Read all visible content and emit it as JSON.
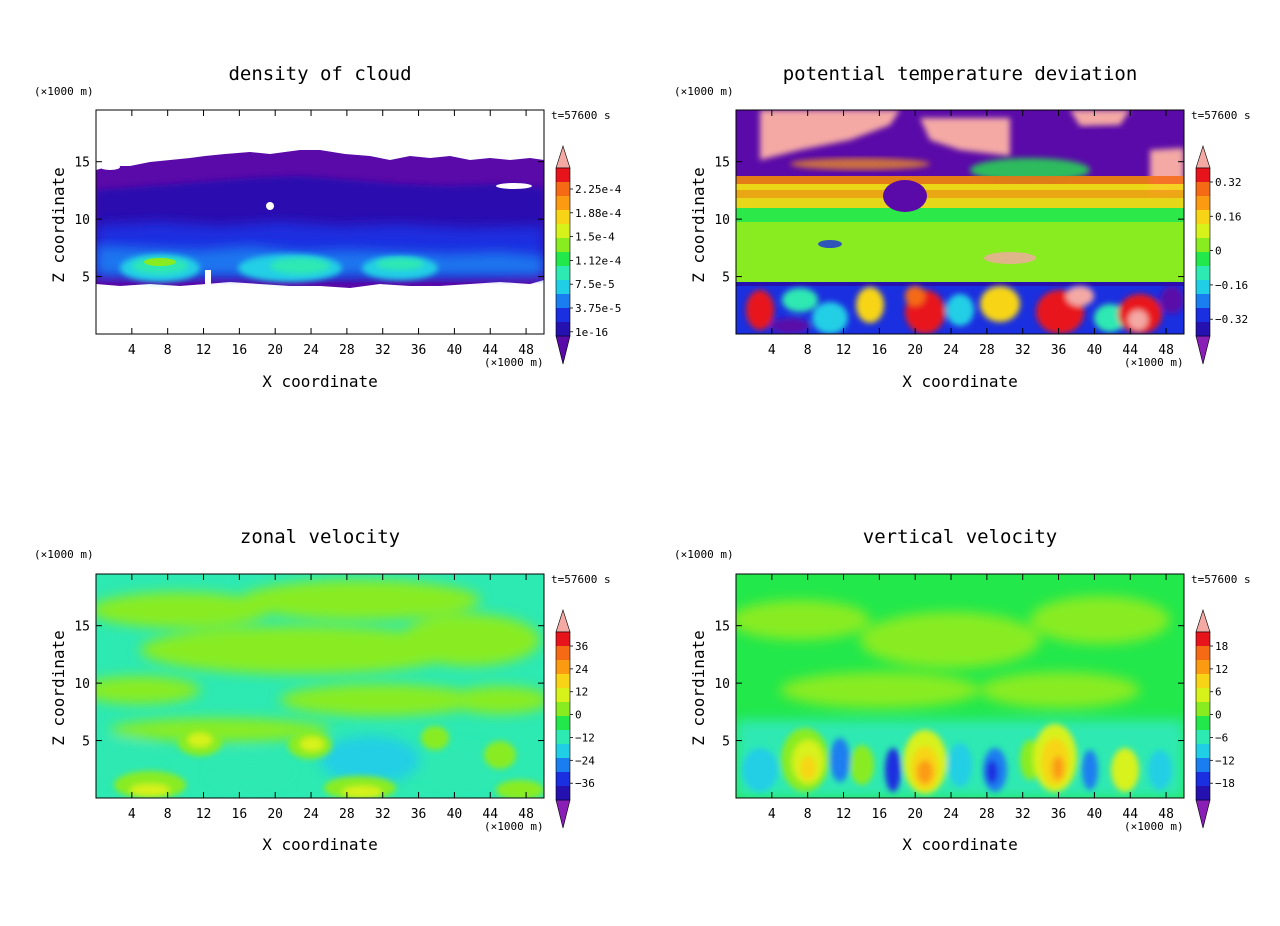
{
  "chart_data": [
    {
      "type": "heatmap",
      "title": "density of cloud",
      "xlabel": "X coordinate",
      "ylabel": "Z coordinate",
      "x_unit": "(×1000 m)",
      "y_unit": "(×1000 m)",
      "time_label": "t=57600 s",
      "xlim": [
        0,
        50
      ],
      "ylim": [
        0,
        19.5
      ],
      "x_ticks": [
        "4",
        "8",
        "12",
        "16",
        "20",
        "24",
        "28",
        "32",
        "36",
        "40",
        "44",
        "48"
      ],
      "x_tick_values": [
        4,
        8,
        12,
        16,
        20,
        24,
        28,
        32,
        36,
        40,
        44,
        48
      ],
      "y_ticks": [
        "5",
        "10",
        "15"
      ],
      "y_tick_values": [
        5,
        10,
        15
      ],
      "colorbar_labels": [
        "2.25e-4",
        "1.88e-4",
        "1.5e-4",
        "1.12e-4",
        "7.5e-5",
        "3.75e-5",
        "1e-16"
      ],
      "colorbar_colors": [
        "#f4a9a4",
        "#e8141c",
        "#f56a14",
        "#fb9b12",
        "#f7d516",
        "#d7f21b",
        "#89ec21",
        "#22e84c",
        "#2de9b2",
        "#20cfe5",
        "#1a7ef0",
        "#1a2fe0",
        "#2511b0",
        "#5a0aa8"
      ],
      "colorbar_extend": "both",
      "field_colors": [
        "#5a0aa8",
        "#2511b0",
        "#1a2fe0",
        "#1a7ef0",
        "#20cfe5",
        "#2de9b2",
        "#89ec21"
      ],
      "field_description": "cloud layer between z≈4.5 and z≈16 with brighter convective cores near x≈8, 20, 34 at z≈5–7"
    },
    {
      "type": "heatmap",
      "title": "potential temperature deviation",
      "xlabel": "X coordinate",
      "ylabel": "Z coordinate",
      "x_unit": "(×1000 m)",
      "y_unit": "(×1000 m)",
      "time_label": "t=57600 s",
      "xlim": [
        0,
        50
      ],
      "ylim": [
        0,
        19.5
      ],
      "x_ticks": [
        "4",
        "8",
        "12",
        "16",
        "20",
        "24",
        "28",
        "32",
        "36",
        "40",
        "44",
        "48"
      ],
      "x_tick_values": [
        4,
        8,
        12,
        16,
        20,
        24,
        28,
        32,
        36,
        40,
        44,
        48
      ],
      "y_ticks": [
        "5",
        "10",
        "15"
      ],
      "y_tick_values": [
        5,
        10,
        15
      ],
      "colorbar_labels": [
        "0.32",
        "0.16",
        "0",
        "−0.16",
        "−0.32"
      ],
      "colorbar_colors": [
        "#e8141c",
        "#f56a14",
        "#fb9b12",
        "#f7d516",
        "#d7f21b",
        "#89ec21",
        "#22e84c",
        "#2de9b2",
        "#20cfe5",
        "#1a7ef0",
        "#1a2fe0",
        "#2511b0"
      ],
      "colorbar_extend": "both",
      "colorbar_top": "#f4a9a4",
      "colorbar_bottom": "#8a1fb8"
    },
    {
      "type": "heatmap",
      "title": "zonal velocity",
      "xlabel": "X coordinate",
      "ylabel": "Z coordinate",
      "x_unit": "(×1000 m)",
      "y_unit": "(×1000 m)",
      "time_label": "t=57600 s",
      "xlim": [
        0,
        50
      ],
      "ylim": [
        0,
        19.5
      ],
      "x_ticks": [
        "4",
        "8",
        "12",
        "16",
        "20",
        "24",
        "28",
        "32",
        "36",
        "40",
        "44",
        "48"
      ],
      "x_tick_values": [
        4,
        8,
        12,
        16,
        20,
        24,
        28,
        32,
        36,
        40,
        44,
        48
      ],
      "y_ticks": [
        "5",
        "10",
        "15"
      ],
      "y_tick_values": [
        5,
        10,
        15
      ],
      "colorbar_labels": [
        "36",
        "24",
        "12",
        "0",
        "−12",
        "−24",
        "−36"
      ],
      "colorbar_colors": [
        "#e8141c",
        "#f56a14",
        "#fb9b12",
        "#f7d516",
        "#d7f21b",
        "#89ec21",
        "#22e84c",
        "#2de9b2",
        "#20cfe5",
        "#1a7ef0",
        "#1a2fe0",
        "#2511b0"
      ],
      "colorbar_extend": "both",
      "colorbar_top": "#f4a9a4",
      "colorbar_bottom": "#8a1fb8"
    },
    {
      "type": "heatmap",
      "title": "vertical velocity",
      "xlabel": "X coordinate",
      "ylabel": "Z coordinate",
      "x_unit": "(×1000 m)",
      "y_unit": "(×1000 m)",
      "time_label": "t=57600 s",
      "xlim": [
        0,
        50
      ],
      "ylim": [
        0,
        19.5
      ],
      "x_ticks": [
        "4",
        "8",
        "12",
        "16",
        "20",
        "24",
        "28",
        "32",
        "36",
        "40",
        "44",
        "48"
      ],
      "x_tick_values": [
        4,
        8,
        12,
        16,
        20,
        24,
        28,
        32,
        36,
        40,
        44,
        48
      ],
      "y_ticks": [
        "5",
        "10",
        "15"
      ],
      "y_tick_values": [
        5,
        10,
        15
      ],
      "colorbar_labels": [
        "18",
        "12",
        "6",
        "0",
        "−6",
        "−12",
        "−18"
      ],
      "colorbar_colors": [
        "#e8141c",
        "#f56a14",
        "#fb9b12",
        "#f7d516",
        "#d7f21b",
        "#89ec21",
        "#22e84c",
        "#2de9b2",
        "#20cfe5",
        "#1a7ef0",
        "#1a2fe0",
        "#2511b0"
      ],
      "colorbar_extend": "both",
      "colorbar_top": "#f4a9a4",
      "colorbar_bottom": "#8a1fb8"
    }
  ]
}
